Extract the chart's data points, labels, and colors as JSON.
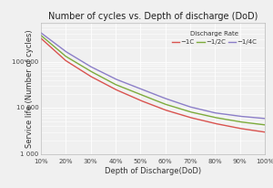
{
  "title": "Number of cycles vs. Depth of discharge (DoD)",
  "xlabel": "Depth of Discharge(DoD)",
  "ylabel": "Service life (Number of cycles)",
  "legend_title": "Discharge Rate",
  "legend_labels": [
    "−1C",
    "−1/2C",
    "−1/4C"
  ],
  "legend_colors": [
    "#d9534f",
    "#7dab3c",
    "#8b7ec8"
  ],
  "x_ticks": [
    0.1,
    0.2,
    0.3,
    0.4,
    0.5,
    0.6,
    0.7,
    0.8,
    0.9,
    1.0
  ],
  "x_tick_labels": [
    "10%",
    "20%",
    "30%",
    "40%",
    "50%",
    "60%",
    "70%",
    "80%",
    "90%",
    "100%"
  ],
  "y_ticks": [
    1000,
    10000,
    100000
  ],
  "y_tick_labels": [
    "1 000",
    "10 000",
    "100 000"
  ],
  "background_color": "#f0f0f0",
  "plot_bg_color": "#f0f0f0",
  "grid_color": "#ffffff",
  "curve_1C": [
    320000,
    105000,
    48000,
    25000,
    14500,
    9000,
    6200,
    4600,
    3600,
    3000
  ],
  "curve_12C": [
    370000,
    130000,
    62000,
    32000,
    19500,
    12000,
    8200,
    6200,
    5000,
    4300
  ],
  "curve_14C": [
    420000,
    165000,
    78000,
    42000,
    26000,
    16000,
    10500,
    7800,
    6600,
    5900
  ],
  "x_data": [
    0.1,
    0.2,
    0.3,
    0.4,
    0.5,
    0.6,
    0.7,
    0.8,
    0.9,
    1.0
  ]
}
